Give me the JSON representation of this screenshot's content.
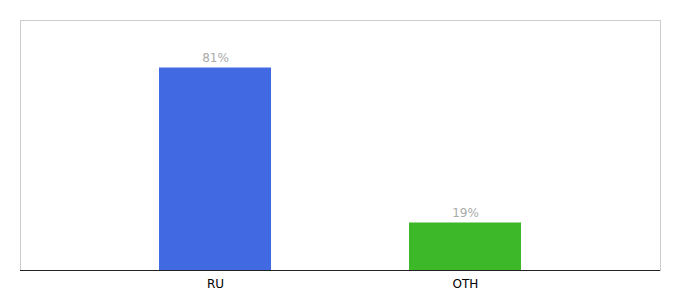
{
  "chart_data": {
    "type": "bar",
    "categories": [
      "RU",
      "OTH"
    ],
    "values": [
      81,
      19
    ],
    "value_labels": [
      "81%",
      "19%"
    ],
    "colors": [
      "#4169e1",
      "#3cb828"
    ],
    "ylim": [
      0,
      100
    ],
    "data_labels": true,
    "tick_labels": "x"
  }
}
